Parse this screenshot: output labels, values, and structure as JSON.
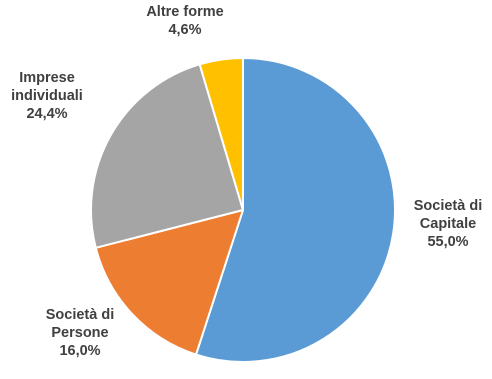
{
  "chart_data": {
    "type": "pie",
    "title": "",
    "start_angle_deg": 0,
    "direction": "clockwise",
    "slices": [
      {
        "line1": "Società di",
        "line2": "Capitale",
        "value": 55.0,
        "value_label": "55,0%",
        "color": "#5B9BD5"
      },
      {
        "line1": "Società di",
        "line2": "Persone",
        "value": 16.0,
        "value_label": "16,0%",
        "color": "#ED7D31"
      },
      {
        "line1": "Imprese",
        "line2": "individuali",
        "value": 24.4,
        "value_label": "24,4%",
        "color": "#A5A5A5"
      },
      {
        "line1": "Altre forme",
        "line2": "",
        "value": 4.6,
        "value_label": "4,6%",
        "color": "#FFC000"
      }
    ],
    "legend": "none",
    "label_position": "outside"
  }
}
